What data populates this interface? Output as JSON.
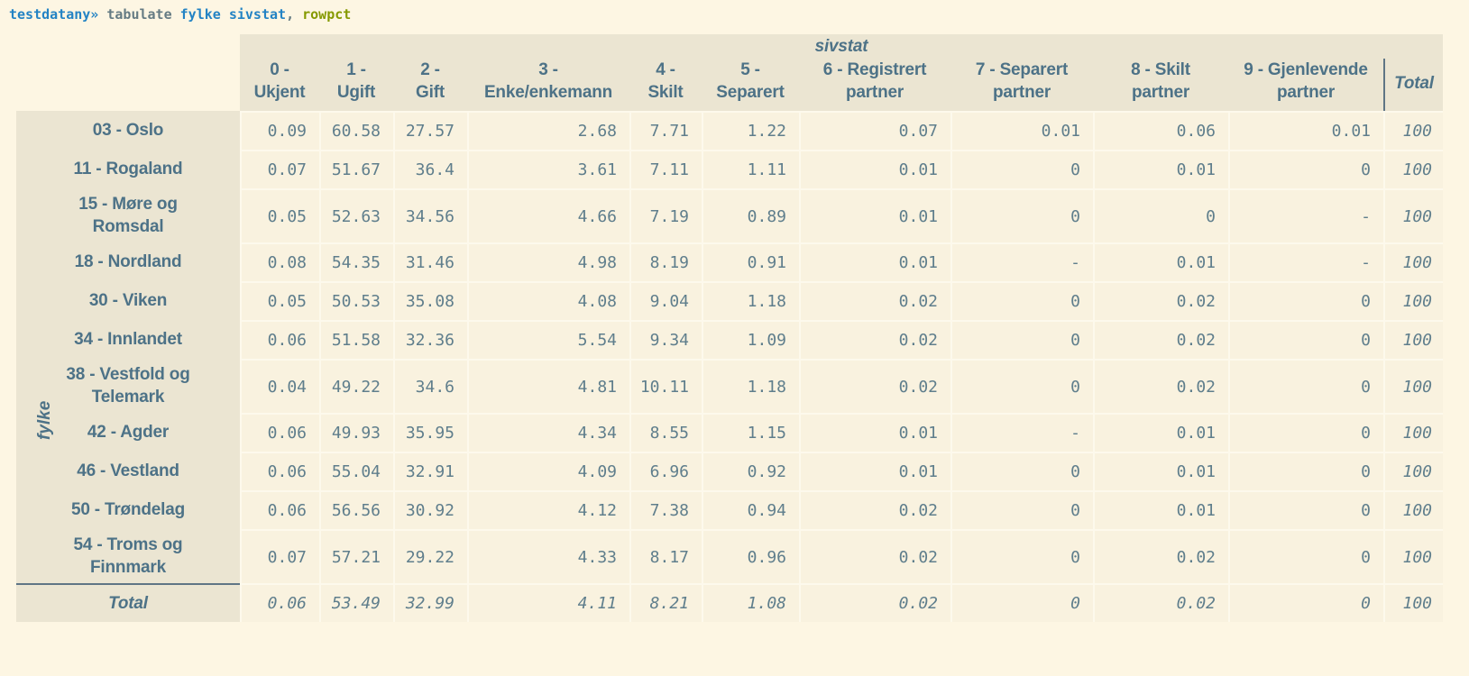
{
  "command": {
    "prompt": "testdatany»",
    "command": " tabulate ",
    "arguments": "fylke sivstat",
    "separator": ", ",
    "option": "rowpct"
  },
  "palette": {
    "page_bg": "#fdf6e3",
    "header_bg": "#ebe5d2",
    "cell_bg": "#f9f2df",
    "header_text": "#4d7287",
    "value_text": "#5f7e8c",
    "prompt_blue": "#2383c4",
    "command_gray": "#657b83",
    "option_olive": "#859900",
    "divider_dark": "#5f7585"
  },
  "table": {
    "col_group_label": "sivstat",
    "row_group_label": "fylke",
    "total_col_label": "Total",
    "columns": [
      {
        "line1": "0 -",
        "line2": "Ukjent"
      },
      {
        "line1": "1 -",
        "line2": "Ugift"
      },
      {
        "line1": "2 -",
        "line2": "Gift"
      },
      {
        "line1": "3 -",
        "line2": "Enke/enkemann"
      },
      {
        "line1": "4 -",
        "line2": "Skilt"
      },
      {
        "line1": "5 -",
        "line2": "Separert"
      },
      {
        "line1": "6 - Registrert",
        "line2": "partner"
      },
      {
        "line1": "7 - Separert",
        "line2": "partner"
      },
      {
        "line1": "8 - Skilt",
        "line2": "partner"
      },
      {
        "line1": "9 - Gjenlevende",
        "line2": "partner"
      }
    ],
    "rows": [
      {
        "label": "03 - Oslo",
        "values": [
          "0.09",
          "60.58",
          "27.57",
          "2.68",
          "7.71",
          "1.22",
          "0.07",
          "0.01",
          "0.06",
          "0.01"
        ],
        "total": "100"
      },
      {
        "label": "11 - Rogaland",
        "values": [
          "0.07",
          "51.67",
          "36.4",
          "3.61",
          "7.11",
          "1.11",
          "0.01",
          "0",
          "0.01",
          "0"
        ],
        "total": "100"
      },
      {
        "label": "15 - Møre og Romsdal",
        "values": [
          "0.05",
          "52.63",
          "34.56",
          "4.66",
          "7.19",
          "0.89",
          "0.01",
          "0",
          "0",
          "-"
        ],
        "total": "100"
      },
      {
        "label": "18 - Nordland",
        "values": [
          "0.08",
          "54.35",
          "31.46",
          "4.98",
          "8.19",
          "0.91",
          "0.01",
          "-",
          "0.01",
          "-"
        ],
        "total": "100"
      },
      {
        "label": "30 - Viken",
        "values": [
          "0.05",
          "50.53",
          "35.08",
          "4.08",
          "9.04",
          "1.18",
          "0.02",
          "0",
          "0.02",
          "0"
        ],
        "total": "100"
      },
      {
        "label": "34 - Innlandet",
        "values": [
          "0.06",
          "51.58",
          "32.36",
          "5.54",
          "9.34",
          "1.09",
          "0.02",
          "0",
          "0.02",
          "0"
        ],
        "total": "100"
      },
      {
        "label": "38 - Vestfold og Telemark",
        "values": [
          "0.04",
          "49.22",
          "34.6",
          "4.81",
          "10.11",
          "1.18",
          "0.02",
          "0",
          "0.02",
          "0"
        ],
        "total": "100"
      },
      {
        "label": "42 - Agder",
        "values": [
          "0.06",
          "49.93",
          "35.95",
          "4.34",
          "8.55",
          "1.15",
          "0.01",
          "-",
          "0.01",
          "0"
        ],
        "total": "100"
      },
      {
        "label": "46 - Vestland",
        "values": [
          "0.06",
          "55.04",
          "32.91",
          "4.09",
          "6.96",
          "0.92",
          "0.01",
          "0",
          "0.01",
          "0"
        ],
        "total": "100"
      },
      {
        "label": "50 - Trøndelag",
        "values": [
          "0.06",
          "56.56",
          "30.92",
          "4.12",
          "7.38",
          "0.94",
          "0.02",
          "0",
          "0.01",
          "0"
        ],
        "total": "100"
      },
      {
        "label": "54 - Troms og Finnmark",
        "values": [
          "0.07",
          "57.21",
          "29.22",
          "4.33",
          "8.17",
          "0.96",
          "0.02",
          "0",
          "0.02",
          "0"
        ],
        "total": "100"
      }
    ],
    "total_row": {
      "label": "Total",
      "values": [
        "0.06",
        "53.49",
        "32.99",
        "4.11",
        "8.21",
        "1.08",
        "0.02",
        "0",
        "0.02",
        "0"
      ],
      "total": "100"
    }
  }
}
